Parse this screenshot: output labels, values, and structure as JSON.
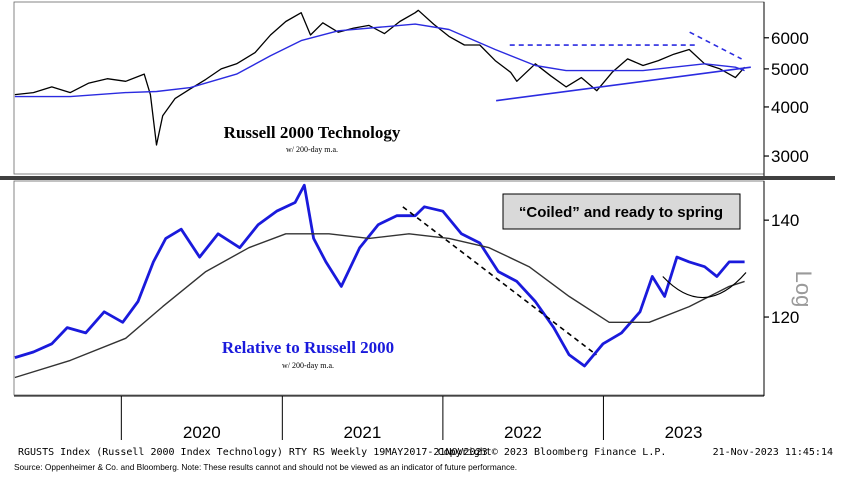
{
  "chart_data": [
    {
      "type": "line",
      "title": "Russell 2000 Technology",
      "subtitle": "w/ 200-day m.a.",
      "scale": "log",
      "yticks": [
        "6000",
        "5000",
        "4000",
        "3000"
      ],
      "ytick_values": [
        6000,
        5000,
        4000,
        3000
      ],
      "ylim": [
        2700,
        7400
      ],
      "xlim": [
        "2019-05-01",
        "2023-12-31"
      ],
      "series": [
        {
          "color": "#000000",
          "x": [
            "2019-05-03",
            "2019-06-14",
            "2019-07-26",
            "2019-09-06",
            "2019-10-18",
            "2019-11-29",
            "2020-01-10",
            "2020-02-21",
            "2020-03-06",
            "2020-03-20",
            "2020-04-03",
            "2020-05-01",
            "2020-06-05",
            "2020-07-10",
            "2020-08-14",
            "2020-09-18",
            "2020-10-30",
            "2020-12-04",
            "2021-01-08",
            "2021-02-12",
            "2021-03-05",
            "2021-04-02",
            "2021-05-07",
            "2021-06-11",
            "2021-07-16",
            "2021-08-20",
            "2021-09-24",
            "2021-10-29",
            "2021-11-05",
            "2021-12-10",
            "2022-01-14",
            "2022-02-18",
            "2022-03-25",
            "2022-04-29",
            "2022-06-03",
            "2022-06-17",
            "2022-07-29",
            "2022-09-02",
            "2022-10-07",
            "2022-11-11",
            "2022-12-16",
            "2023-01-20",
            "2023-02-24",
            "2023-03-31",
            "2023-05-05",
            "2023-06-09",
            "2023-07-14",
            "2023-08-18",
            "2023-09-22",
            "2023-10-27",
            "2023-11-17"
          ],
          "values": [
            4300,
            4350,
            4500,
            4350,
            4600,
            4720,
            4650,
            4850,
            4300,
            3200,
            3800,
            4200,
            4450,
            4700,
            5000,
            5150,
            5500,
            6100,
            6600,
            6950,
            6100,
            6550,
            6200,
            6350,
            6450,
            6150,
            6600,
            6950,
            7050,
            6500,
            6050,
            5750,
            5750,
            5250,
            4900,
            4650,
            5150,
            4800,
            4500,
            4750,
            4400,
            4900,
            5300,
            5100,
            5250,
            5450,
            5600,
            5150,
            5000,
            4750,
            5050
          ]
        },
        {
          "color": "#2b2be0",
          "x": [
            "2019-05-03",
            "2019-09-06",
            "2020-01-10",
            "2020-03-20",
            "2020-06-05",
            "2020-09-18",
            "2020-12-04",
            "2021-02-12",
            "2021-05-07",
            "2021-08-20",
            "2021-10-29",
            "2022-01-14",
            "2022-04-29",
            "2022-07-29",
            "2022-10-07",
            "2022-12-16",
            "2023-03-31",
            "2023-06-09",
            "2023-08-18",
            "2023-10-27",
            "2023-11-17"
          ],
          "values": [
            4250,
            4250,
            4350,
            4380,
            4480,
            4850,
            5400,
            5900,
            6250,
            6400,
            6500,
            6300,
            5600,
            5100,
            4950,
            4950,
            4950,
            5050,
            5150,
            5050,
            4950
          ]
        }
      ],
      "annotations": [
        {
          "type": "dashed-resistance",
          "color": "#2b2be0",
          "x": [
            "2022-06-01",
            "2023-07-31"
          ],
          "values": [
            5750,
            5750
          ]
        },
        {
          "type": "trendline-support",
          "color": "#2b2be0",
          "x": [
            "2022-05-01",
            "2023-12-01"
          ],
          "values": [
            4150,
            5050
          ]
        },
        {
          "type": "dashed-downtrend",
          "color": "#2b2be0",
          "x": [
            "2023-07-15",
            "2023-11-10"
          ],
          "values": [
            6200,
            5300
          ]
        }
      ]
    },
    {
      "type": "line",
      "title": "Relative to Russell 2000",
      "subtitle": "w/ 200-day m.a.",
      "callout": "“Coiled” and ready to spring",
      "scale": "log",
      "scale_label": "Log",
      "yticks": [
        "140",
        "120"
      ],
      "ytick_values": [
        140,
        120
      ],
      "ylim": [
        106,
        149
      ],
      "xlim": [
        "2019-05-01",
        "2023-12-31"
      ],
      "series": [
        {
          "color": "#1a1adc",
          "x": [
            "2019-05-03",
            "2019-06-14",
            "2019-07-26",
            "2019-08-30",
            "2019-10-11",
            "2019-11-22",
            "2020-01-03",
            "2020-02-07",
            "2020-03-13",
            "2020-04-10",
            "2020-05-15",
            "2020-06-26",
            "2020-08-07",
            "2020-09-25",
            "2020-11-06",
            "2020-12-18",
            "2021-01-29",
            "2021-02-19",
            "2021-03-12",
            "2021-04-09",
            "2021-05-14",
            "2021-06-25",
            "2021-08-06",
            "2021-09-17",
            "2021-10-29",
            "2021-11-19",
            "2021-12-31",
            "2022-02-11",
            "2022-03-25",
            "2022-05-06",
            "2022-06-17",
            "2022-07-29",
            "2022-09-09",
            "2022-10-14",
            "2022-11-18",
            "2022-12-30",
            "2023-02-10",
            "2023-03-24",
            "2023-04-21",
            "2023-05-19",
            "2023-06-16",
            "2023-07-14",
            "2023-08-18",
            "2023-09-15",
            "2023-10-13",
            "2023-11-17"
          ],
          "values": [
            112.5,
            113.5,
            115,
            118,
            117,
            121,
            119,
            123,
            131,
            136,
            138,
            132,
            137,
            134,
            139,
            142,
            144,
            148,
            136,
            131,
            126,
            134,
            139,
            141,
            141,
            143,
            142,
            137,
            135,
            129,
            127,
            123,
            118,
            113,
            111,
            115,
            117,
            121,
            128,
            124,
            132,
            131,
            130,
            128,
            131,
            131
          ]
        },
        {
          "color": "#333333",
          "x": [
            "2019-05-03",
            "2019-09-06",
            "2020-01-10",
            "2020-04-03",
            "2020-07-10",
            "2020-10-16",
            "2021-01-08",
            "2021-04-16",
            "2021-07-16",
            "2021-10-15",
            "2022-01-14",
            "2022-04-15",
            "2022-07-15",
            "2022-10-14",
            "2023-01-13",
            "2023-04-14",
            "2023-07-14",
            "2023-10-13",
            "2023-11-17"
          ],
          "values": [
            109,
            112,
            116,
            122,
            129,
            134,
            137,
            137,
            136,
            137,
            136,
            134,
            130,
            124,
            119,
            119,
            122,
            126,
            127
          ]
        }
      ],
      "annotations": [
        {
          "type": "dashed-downtrend",
          "color": "#000000",
          "x": [
            "2021-10-01",
            "2022-12-15"
          ],
          "values": [
            143,
            113
          ]
        },
        {
          "type": "base-arc",
          "color": "#000000",
          "x": [
            "2023-05-15",
            "2023-11-20"
          ],
          "values": [
            128,
            128
          ]
        }
      ]
    }
  ],
  "xaxis": {
    "tick_labels": [
      "2020",
      "2021",
      "2022",
      "2023"
    ],
    "tick_dates": [
      "2019-12-31",
      "2020-12-31",
      "2021-12-31",
      "2022-12-31"
    ],
    "label_dates": [
      "2020-07-01",
      "2021-07-01",
      "2022-07-01",
      "2023-07-01"
    ]
  },
  "footer": {
    "bloomberg_left": "RGUSTS Index (Russell 2000 Index Technology) RTY RS  Weekly 19MAY2017-21NOV2023",
    "bloomberg_mid": "Copyright© 2023 Bloomberg Finance L.P.",
    "bloomberg_right": "21-Nov-2023 11:45:14",
    "source": "Source:  Oppenheimer & Co. and Bloomberg. Note: These results cannot and should not be viewed as an indicator of future performance."
  }
}
